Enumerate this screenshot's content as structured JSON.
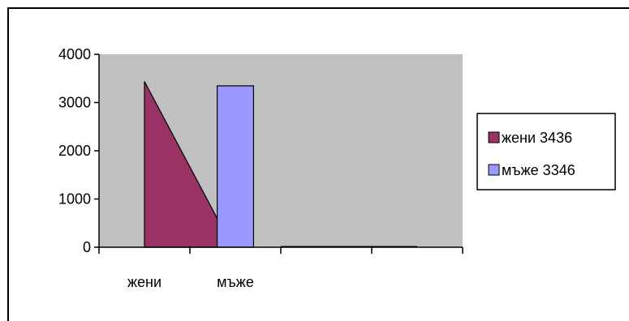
{
  "chart_data": {
    "type": "area",
    "categories": [
      "жени",
      "мъже",
      "",
      ""
    ],
    "series": [
      {
        "name": "жени 3436",
        "color": "#993366",
        "kind": "area",
        "values": [
          3436,
          600,
          0,
          0
        ]
      },
      {
        "name": "мъже 3346",
        "color": "#9999ff",
        "kind": "bar",
        "values": [
          null,
          3346,
          null,
          null
        ]
      }
    ],
    "yticks": [
      0,
      1000,
      2000,
      3000,
      4000
    ],
    "ylim": [
      0,
      4000
    ],
    "plot_background": "#c0c0c0",
    "legend_position": "right",
    "grid": false
  }
}
